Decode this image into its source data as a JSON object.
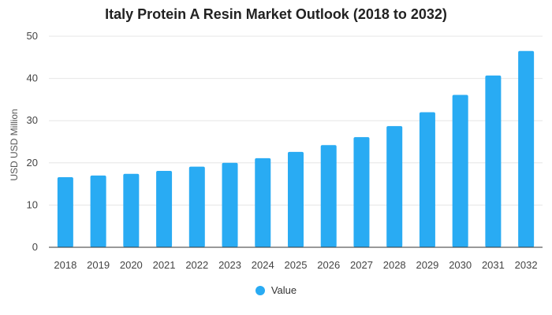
{
  "chart_data": {
    "type": "bar",
    "title": "Italy Protein A Resin Market Outlook (2018 to 2032)",
    "xlabel": "",
    "ylabel": "USD USD Million",
    "categories": [
      "2018",
      "2019",
      "2020",
      "2021",
      "2022",
      "2023",
      "2024",
      "2025",
      "2026",
      "2027",
      "2028",
      "2029",
      "2030",
      "2031",
      "2032"
    ],
    "series": [
      {
        "name": "Value",
        "color": "#29abf3",
        "values": [
          16.6,
          17.0,
          17.4,
          18.1,
          19.1,
          20.0,
          21.1,
          22.6,
          24.2,
          26.1,
          28.7,
          32.0,
          36.1,
          40.7,
          46.5
        ]
      }
    ],
    "ylim": [
      0,
      50
    ],
    "yticks": [
      0,
      10,
      20,
      30,
      40,
      50
    ],
    "grid": true,
    "legend_position": "bottom-center"
  }
}
